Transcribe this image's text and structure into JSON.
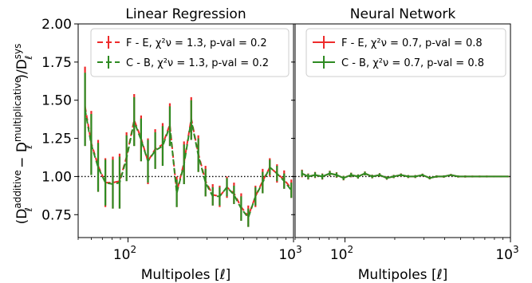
{
  "figure": {
    "ylabel_main": "(D",
    "ylabel_sup1": "additive",
    "ylabel_sub1": "ℓ",
    "ylabel_minus": " − D",
    "ylabel_sup2": "multiplicative",
    "ylabel_sub2": "ℓ",
    "ylabel_div": ")/D",
    "ylabel_sup3": "sys",
    "ylabel_sub3": "ℓ",
    "colors": {
      "red": "#ee2b2b",
      "green": "#2e8b22"
    }
  },
  "chart_data": [
    {
      "type": "line",
      "title": "Linear Regression",
      "xlabel": "Multipoles [ℓ]",
      "xscale": "log",
      "xlim": [
        50,
        1000
      ],
      "ylim": [
        0.6,
        2.0
      ],
      "yticks": [
        "0.75",
        "1.00",
        "1.25",
        "1.50",
        "1.75",
        "2.00"
      ],
      "xticks": [
        {
          "base": "10",
          "exp": "2"
        },
        {
          "base": "10",
          "exp": "3"
        }
      ],
      "reference_line": 1.0,
      "legend_position": "top-right",
      "x": [
        55,
        60,
        66,
        73,
        81,
        89,
        98,
        109,
        120,
        132,
        146,
        162,
        179,
        197,
        218,
        241,
        266,
        294,
        325,
        358,
        396,
        437,
        483,
        533,
        589,
        651,
        719,
        795,
        878,
        970
      ],
      "series": [
        {
          "legend": "F - E, χ²ν = 1.3, p-val = 0.2",
          "color": "red",
          "style": "dashed",
          "y": [
            1.46,
            1.22,
            1.07,
            0.96,
            0.96,
            0.97,
            1.13,
            1.37,
            1.25,
            1.1,
            1.18,
            1.21,
            1.34,
            0.9,
            1.09,
            1.38,
            1.15,
            0.97,
            0.88,
            0.87,
            0.93,
            0.89,
            0.8,
            0.74,
            0.87,
            0.97,
            1.06,
            1.02,
            0.98,
            0.92
          ],
          "err": [
            0.26,
            0.21,
            0.17,
            0.16,
            0.17,
            0.18,
            0.16,
            0.17,
            0.15,
            0.15,
            0.13,
            0.14,
            0.14,
            0.1,
            0.14,
            0.14,
            0.12,
            0.1,
            0.07,
            0.07,
            0.07,
            0.07,
            0.09,
            0.07,
            0.07,
            0.08,
            0.06,
            0.06,
            0.06,
            0.06
          ]
        },
        {
          "legend": "C - B, χ²ν = 1.3, p-val = 0.2",
          "color": "green",
          "style": "dashed",
          "y": [
            1.44,
            1.21,
            1.06,
            0.96,
            0.95,
            0.96,
            1.12,
            1.36,
            1.24,
            1.1,
            1.17,
            1.2,
            1.33,
            0.89,
            1.08,
            1.37,
            1.14,
            0.96,
            0.87,
            0.87,
            0.93,
            0.88,
            0.79,
            0.73,
            0.87,
            0.96,
            1.06,
            1.02,
            0.97,
            0.91
          ],
          "err": [
            0.24,
            0.2,
            0.16,
            0.15,
            0.16,
            0.17,
            0.15,
            0.16,
            0.14,
            0.14,
            0.12,
            0.13,
            0.13,
            0.09,
            0.13,
            0.13,
            0.11,
            0.09,
            0.06,
            0.06,
            0.06,
            0.06,
            0.08,
            0.06,
            0.06,
            0.07,
            0.05,
            0.05,
            0.05,
            0.05
          ]
        }
      ]
    },
    {
      "type": "line",
      "title": "Neural Network",
      "xlabel": "Multipoles [ℓ]",
      "xscale": "log",
      "xlim": [
        50,
        1000
      ],
      "ylim": [
        0.6,
        2.0
      ],
      "xticks": [
        {
          "base": "10",
          "exp": "2"
        },
        {
          "base": "10",
          "exp": "3"
        }
      ],
      "reference_line": 1.0,
      "legend_position": "top-right",
      "x": [
        55,
        60,
        66,
        73,
        81,
        89,
        98,
        109,
        120,
        132,
        146,
        162,
        179,
        197,
        218,
        241,
        266,
        294,
        325,
        358,
        396,
        437,
        483,
        533,
        589,
        651,
        719,
        795,
        878,
        970
      ],
      "series": [
        {
          "legend": "F - E, χ²ν = 0.7, p-val = 0.8",
          "color": "red",
          "style": "solid",
          "y": [
            1.02,
            1.0,
            1.01,
            1.0,
            1.02,
            1.01,
            0.99,
            1.01,
            1.0,
            1.02,
            1.0,
            1.01,
            0.99,
            1.0,
            1.01,
            1.0,
            1.0,
            1.01,
            0.99,
            1.0,
            1.0,
            1.01,
            1.0,
            1.0,
            1.0,
            1.0,
            1.0,
            1.0,
            1.0,
            1.0
          ],
          "err": [
            0.025,
            0.02,
            0.02,
            0.02,
            0.018,
            0.018,
            0.015,
            0.015,
            0.014,
            0.013,
            0.012,
            0.012,
            0.011,
            0.011,
            0.01,
            0.01,
            0.01,
            0.009,
            0.009,
            0.008,
            0.008,
            0.007,
            0.007,
            0.007,
            0.006,
            0.006,
            0.006,
            0.005,
            0.005,
            0.005
          ]
        },
        {
          "legend": "C - B, χ²ν = 0.7, p-val = 0.8",
          "color": "green",
          "style": "solid",
          "y": [
            1.02,
            1.0,
            1.01,
            1.0,
            1.02,
            1.01,
            0.99,
            1.01,
            1.0,
            1.02,
            1.0,
            1.01,
            0.99,
            1.0,
            1.01,
            1.0,
            1.0,
            1.01,
            0.99,
            1.0,
            1.0,
            1.01,
            1.0,
            1.0,
            1.0,
            1.0,
            1.0,
            1.0,
            1.0,
            1.0
          ],
          "err": [
            0.022,
            0.018,
            0.018,
            0.018,
            0.016,
            0.016,
            0.014,
            0.014,
            0.013,
            0.012,
            0.011,
            0.011,
            0.01,
            0.01,
            0.009,
            0.009,
            0.009,
            0.008,
            0.008,
            0.007,
            0.007,
            0.006,
            0.006,
            0.006,
            0.005,
            0.005,
            0.005,
            0.004,
            0.004,
            0.004
          ]
        }
      ]
    }
  ]
}
